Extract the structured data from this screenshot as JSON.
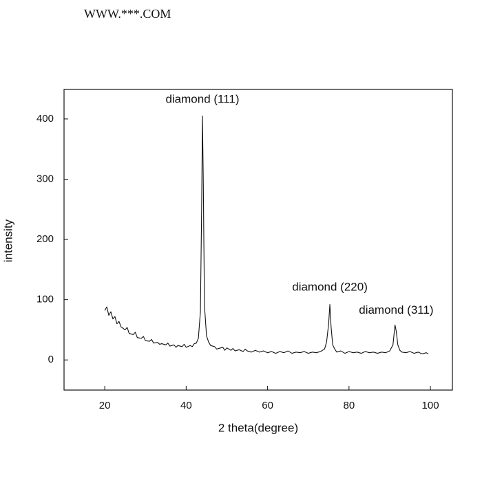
{
  "header": {
    "title": "WWW.***.COM"
  },
  "chart_data": {
    "type": "line",
    "x_label": "2 theta(degree)",
    "y_label": "intensity",
    "xlim": [
      10,
      105.4
    ],
    "ylim": [
      -50,
      449
    ],
    "xticks": [
      20,
      40,
      60,
      80,
      100
    ],
    "yticks": [
      0,
      100,
      200,
      300,
      400
    ],
    "series": [
      {
        "color": "#111111",
        "x": [
          20,
          20.5,
          21,
          21.5,
          22,
          22.5,
          23,
          23.5,
          24,
          25,
          25.5,
          26,
          27,
          27.5,
          28,
          29,
          29.5,
          30,
          31,
          31.5,
          32,
          33,
          33.5,
          34,
          35,
          35.5,
          36,
          37,
          37.5,
          38,
          39,
          39.5,
          40,
          41,
          41.5,
          42,
          42.5,
          43,
          43.5,
          43.8,
          44,
          44.2,
          44.5,
          45,
          45.5,
          46,
          47,
          47.5,
          48,
          49,
          49.5,
          50,
          51,
          51.5,
          52,
          53,
          54,
          54.5,
          55,
          56,
          57,
          58,
          59,
          60,
          61,
          62,
          63,
          64,
          65,
          66,
          67,
          68,
          69,
          70,
          71,
          72,
          73,
          74,
          74.5,
          75,
          75.3,
          75.6,
          76,
          76.5,
          77,
          78,
          79,
          80,
          81,
          82,
          83,
          84,
          85,
          86,
          87,
          88,
          89,
          90,
          90.8,
          91.3,
          91.6,
          92,
          92.5,
          93,
          94,
          95,
          96,
          97,
          98,
          99,
          99.5
        ],
        "values": [
          82,
          88,
          74,
          80,
          68,
          72,
          60,
          64,
          55,
          50,
          54,
          44,
          42,
          46,
          37,
          36,
          39,
          32,
          31,
          34,
          28,
          29,
          26,
          27,
          25,
          28,
          23,
          25,
          21,
          24,
          22,
          26,
          21,
          24,
          22,
          27,
          28,
          36,
          80,
          250,
          405,
          300,
          90,
          40,
          30,
          24,
          22,
          18,
          19,
          21,
          16,
          20,
          16,
          19,
          15,
          17,
          14,
          18,
          15,
          13,
          16,
          13,
          15,
          12,
          14,
          11,
          14,
          12,
          15,
          11,
          13,
          12,
          14,
          11,
          13,
          12,
          14,
          18,
          30,
          60,
          92,
          55,
          25,
          18,
          13,
          15,
          11,
          14,
          12,
          13,
          11,
          14,
          12,
          13,
          11,
          13,
          12,
          15,
          25,
          58,
          48,
          25,
          16,
          13,
          12,
          14,
          11,
          13,
          10,
          12,
          10
        ]
      }
    ],
    "annotations": [
      {
        "text": "diamond (111)",
        "x": 44,
        "y": 432
      },
      {
        "text": "diamond (220)",
        "x": 75.3,
        "y": 120
      },
      {
        "text": "diamond (311)",
        "x": 91.6,
        "y": 82
      }
    ]
  }
}
